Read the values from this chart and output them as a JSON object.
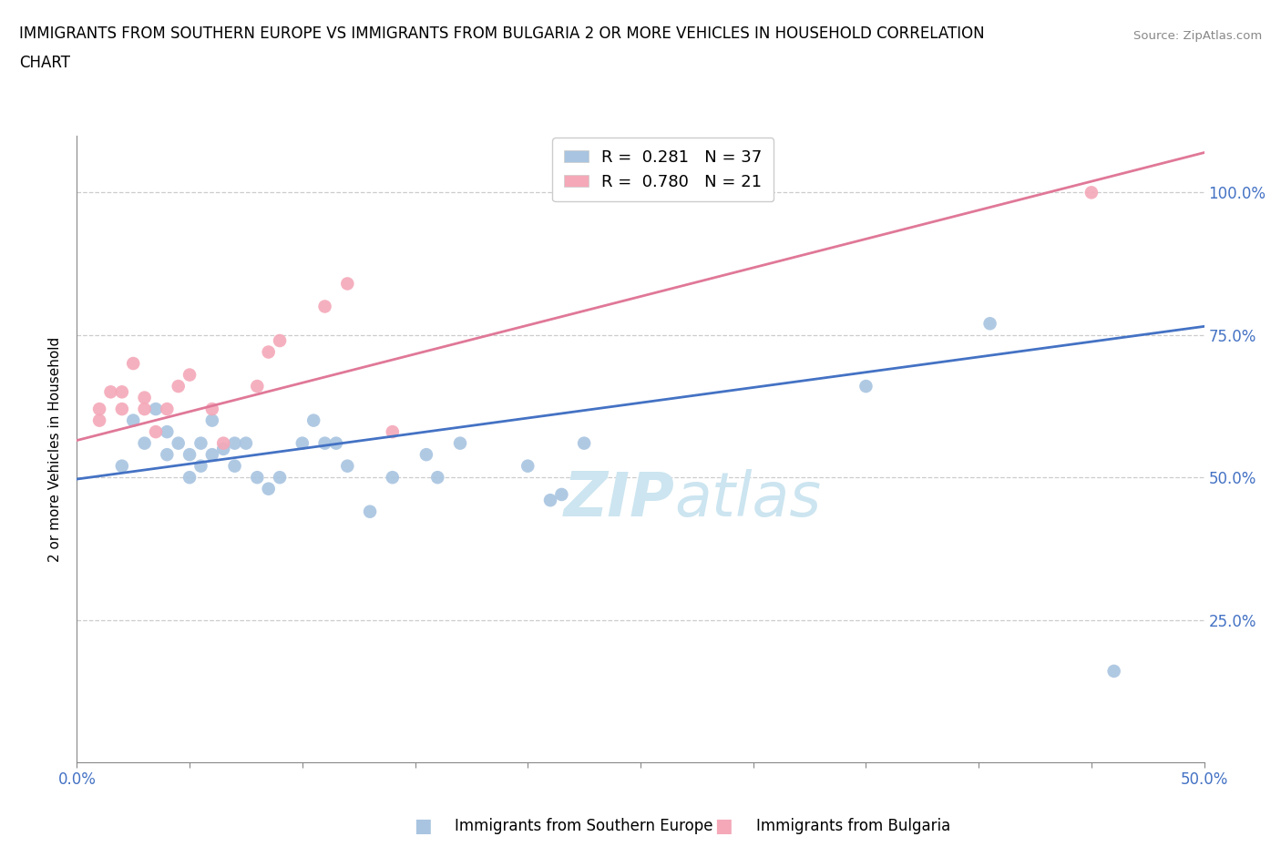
{
  "title_line1": "IMMIGRANTS FROM SOUTHERN EUROPE VS IMMIGRANTS FROM BULGARIA 2 OR MORE VEHICLES IN HOUSEHOLD CORRELATION",
  "title_line2": "CHART",
  "source": "Source: ZipAtlas.com",
  "ylabel": "2 or more Vehicles in Household",
  "xlim": [
    0.0,
    0.5
  ],
  "ylim": [
    0.0,
    1.1
  ],
  "xticks": [
    0.0,
    0.05,
    0.1,
    0.15,
    0.2,
    0.25,
    0.3,
    0.35,
    0.4,
    0.45,
    0.5
  ],
  "xticklabels_show": [
    "0.0%",
    "",
    "",
    "",
    "",
    "",
    "",
    "",
    "",
    "",
    "50.0%"
  ],
  "ytick_positions": [
    0.25,
    0.5,
    0.75,
    1.0
  ],
  "yticklabels": [
    "25.0%",
    "50.0%",
    "75.0%",
    "100.0%"
  ],
  "blue_R": 0.281,
  "blue_N": 37,
  "pink_R": 0.78,
  "pink_N": 21,
  "blue_color": "#a8c4e0",
  "pink_color": "#f4a8b8",
  "blue_line_color": "#4472c4",
  "pink_line_color": "#e07898",
  "watermark_zip": "ZIP",
  "watermark_atlas": "atlas",
  "watermark_color": "#cce5f0",
  "blue_scatter_x": [
    0.02,
    0.025,
    0.03,
    0.035,
    0.04,
    0.04,
    0.045,
    0.05,
    0.05,
    0.055,
    0.055,
    0.06,
    0.06,
    0.065,
    0.07,
    0.07,
    0.075,
    0.08,
    0.085,
    0.09,
    0.1,
    0.105,
    0.11,
    0.115,
    0.12,
    0.13,
    0.14,
    0.155,
    0.16,
    0.17,
    0.2,
    0.21,
    0.215,
    0.225,
    0.35,
    0.405,
    0.46
  ],
  "blue_scatter_y": [
    0.52,
    0.6,
    0.56,
    0.62,
    0.54,
    0.58,
    0.56,
    0.5,
    0.54,
    0.52,
    0.56,
    0.54,
    0.6,
    0.55,
    0.52,
    0.56,
    0.56,
    0.5,
    0.48,
    0.5,
    0.56,
    0.6,
    0.56,
    0.56,
    0.52,
    0.44,
    0.5,
    0.54,
    0.5,
    0.56,
    0.52,
    0.46,
    0.47,
    0.56,
    0.66,
    0.77,
    0.16
  ],
  "pink_scatter_x": [
    0.01,
    0.01,
    0.015,
    0.02,
    0.02,
    0.025,
    0.03,
    0.03,
    0.035,
    0.04,
    0.045,
    0.05,
    0.06,
    0.065,
    0.08,
    0.085,
    0.09,
    0.11,
    0.12,
    0.14,
    0.45
  ],
  "pink_scatter_y": [
    0.6,
    0.62,
    0.65,
    0.62,
    0.65,
    0.7,
    0.62,
    0.64,
    0.58,
    0.62,
    0.66,
    0.68,
    0.62,
    0.56,
    0.66,
    0.72,
    0.74,
    0.8,
    0.84,
    0.58,
    1.0
  ],
  "blue_trendline": [
    0.0,
    0.5,
    0.497,
    0.765
  ],
  "pink_trendline": [
    0.0,
    0.5,
    0.565,
    1.07
  ],
  "grid_color": "#cccccc",
  "tick_color": "#4472c4",
  "background_color": "#ffffff",
  "legend_label1": "R =  0.281   N = 37",
  "legend_label2": "R =  0.780   N = 21",
  "bottom_label1": "Immigrants from Southern Europe",
  "bottom_label2": "Immigrants from Bulgaria"
}
